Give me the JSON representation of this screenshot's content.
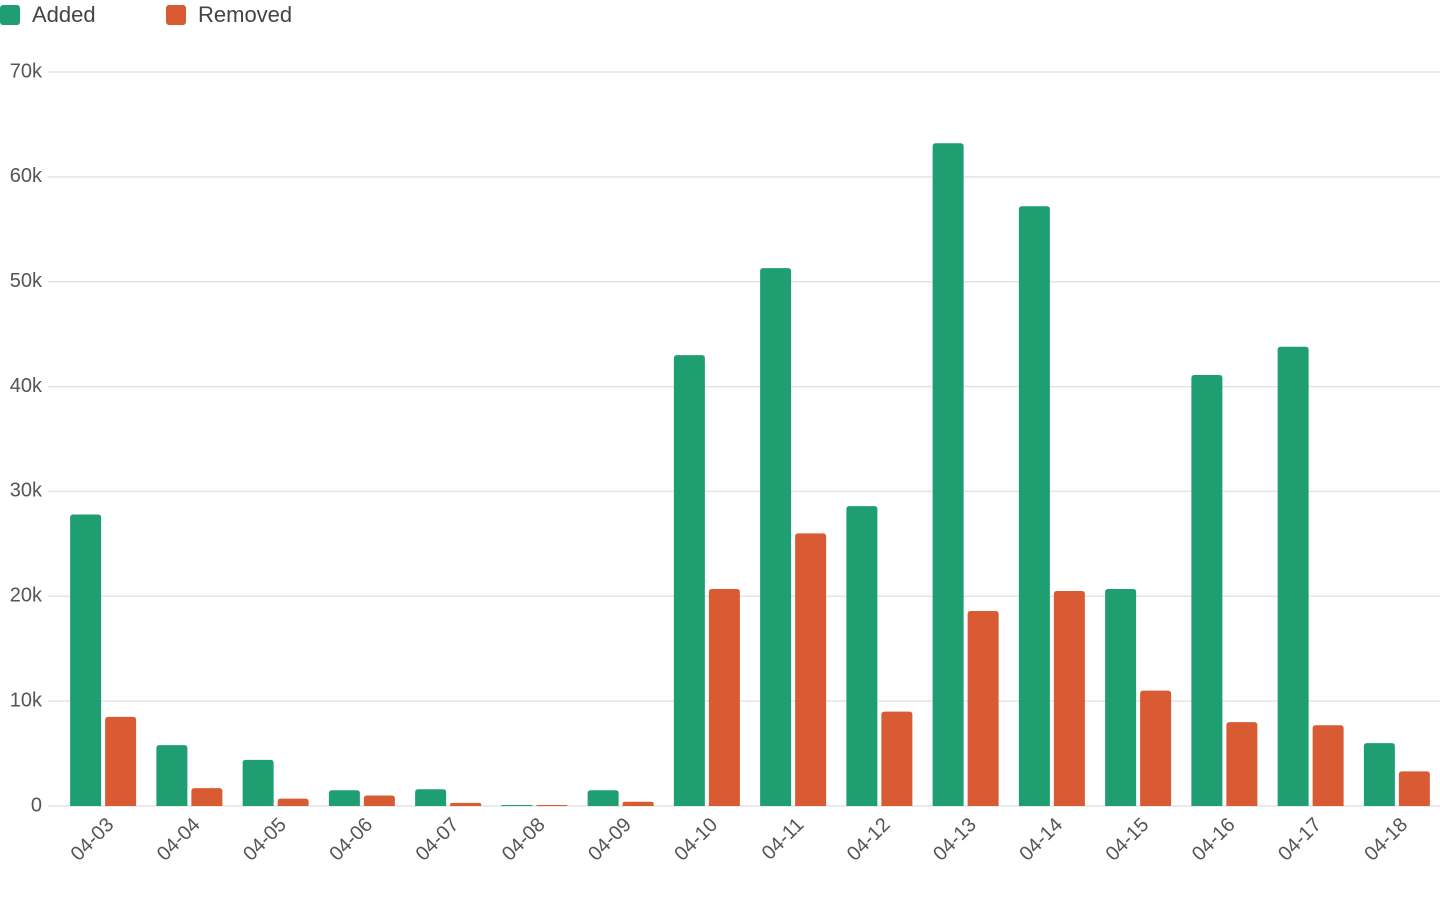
{
  "chart_data": {
    "type": "bar",
    "categories": [
      "04-03",
      "04-04",
      "04-05",
      "04-06",
      "04-07",
      "04-08",
      "04-09",
      "04-10",
      "04-11",
      "04-12",
      "04-13",
      "04-14",
      "04-15",
      "04-16",
      "04-17",
      "04-18"
    ],
    "series": [
      {
        "name": "Added",
        "color": "#1f9e72",
        "values": [
          27800,
          5800,
          4400,
          1500,
          1600,
          100,
          1500,
          43000,
          51300,
          28600,
          63200,
          57200,
          20700,
          41100,
          43800,
          6000
        ]
      },
      {
        "name": "Removed",
        "color": "#d95b33",
        "values": [
          8500,
          1700,
          700,
          1000,
          300,
          100,
          400,
          20700,
          26000,
          9000,
          18600,
          20500,
          11000,
          8000,
          7700,
          3300
        ]
      }
    ],
    "ylim": [
      0,
      70000
    ],
    "yticks": [
      0,
      {
        "value": 10000,
        "label": "10k"
      },
      {
        "value": 20000,
        "label": "20k"
      },
      {
        "value": 30000,
        "label": "30k"
      },
      {
        "value": 40000,
        "label": "40k"
      },
      {
        "value": 50000,
        "label": "50k"
      },
      {
        "value": 60000,
        "label": "60k"
      },
      {
        "value": 70000,
        "label": "70k"
      }
    ],
    "grid": true,
    "legend": "top-left"
  }
}
